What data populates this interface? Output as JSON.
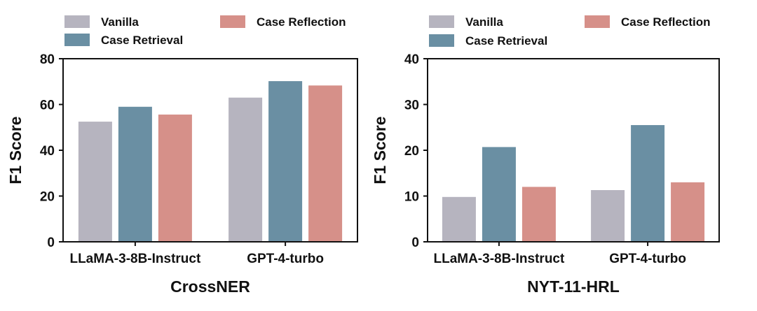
{
  "chart_data": [
    {
      "type": "bar",
      "title": "",
      "xlabel": "CrossNER",
      "ylabel": "F1 Score",
      "ylim": [
        0,
        80
      ],
      "yticks": [
        "0",
        "20",
        "40",
        "60",
        "80"
      ],
      "categories": [
        "LLaMA-3-8B-Instruct",
        "GPT-4-turbo"
      ],
      "series": [
        {
          "name": "Vanilla",
          "color": "#b6b4bf",
          "values": [
            52.5,
            63.0
          ]
        },
        {
          "name": "Case Retrieval",
          "color": "#6a8fa3",
          "values": [
            59.0,
            70.2
          ]
        },
        {
          "name": "Case Reflection",
          "color": "#d69089",
          "values": [
            55.6,
            68.3
          ]
        }
      ],
      "legend_position": "top",
      "grid": false
    },
    {
      "type": "bar",
      "title": "",
      "xlabel": "NYT-11-HRL",
      "ylabel": "F1 Score",
      "ylim": [
        0,
        40
      ],
      "yticks": [
        "0",
        "10",
        "20",
        "30",
        "40"
      ],
      "categories": [
        "LLaMA-3-8B-Instruct",
        "GPT-4-turbo"
      ],
      "series": [
        {
          "name": "Vanilla",
          "color": "#b6b4bf",
          "values": [
            9.8,
            11.3
          ]
        },
        {
          "name": "Case Retrieval",
          "color": "#6a8fa3",
          "values": [
            20.7,
            25.5
          ]
        },
        {
          "name": "Case Reflection",
          "color": "#d69089",
          "values": [
            12.0,
            13.0
          ]
        }
      ],
      "legend_position": "top",
      "grid": false
    }
  ]
}
